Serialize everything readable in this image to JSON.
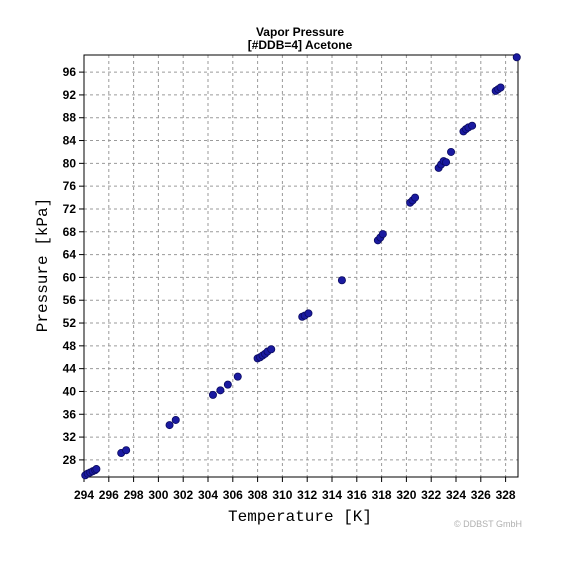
{
  "chart_data": {
    "type": "scatter",
    "title": "Vapor Pressure",
    "subtitle": "[#DDB=4] Acetone",
    "xlabel": "Temperature [K]",
    "ylabel": "Pressure [kPa]",
    "xlim": [
      294,
      329
    ],
    "ylim": [
      25,
      99
    ],
    "xticks": [
      294,
      296,
      298,
      300,
      302,
      304,
      306,
      308,
      310,
      312,
      314,
      316,
      318,
      320,
      322,
      324,
      326,
      328
    ],
    "yticks": [
      28,
      32,
      36,
      40,
      44,
      48,
      52,
      56,
      60,
      64,
      68,
      72,
      76,
      80,
      84,
      88,
      92,
      96
    ],
    "grid": true,
    "marker_color": "#1a1aa0",
    "series": [
      {
        "points": [
          [
            294.1,
            25.3
          ],
          [
            294.3,
            25.6
          ],
          [
            294.5,
            25.8
          ],
          [
            294.7,
            26.0
          ],
          [
            294.9,
            26.2
          ],
          [
            295.0,
            26.4
          ],
          [
            297.0,
            29.2
          ],
          [
            297.4,
            29.7
          ],
          [
            300.9,
            34.1
          ],
          [
            301.4,
            35.0
          ],
          [
            304.4,
            39.4
          ],
          [
            305.0,
            40.2
          ],
          [
            305.6,
            41.2
          ],
          [
            306.4,
            42.6
          ],
          [
            308.0,
            45.8
          ],
          [
            308.2,
            46.0
          ],
          [
            308.4,
            46.3
          ],
          [
            308.6,
            46.6
          ],
          [
            308.8,
            47.0
          ],
          [
            309.1,
            47.4
          ],
          [
            311.6,
            53.1
          ],
          [
            311.8,
            53.3
          ],
          [
            312.1,
            53.7
          ],
          [
            314.8,
            59.5
          ],
          [
            317.7,
            66.5
          ],
          [
            317.9,
            67.0
          ],
          [
            318.1,
            67.6
          ],
          [
            320.3,
            73.1
          ],
          [
            320.5,
            73.5
          ],
          [
            320.7,
            74.0
          ],
          [
            322.6,
            79.2
          ],
          [
            322.8,
            79.8
          ],
          [
            323.0,
            80.4
          ],
          [
            323.2,
            80.2
          ],
          [
            323.6,
            82.0
          ],
          [
            324.6,
            85.6
          ],
          [
            324.8,
            86.0
          ],
          [
            325.0,
            86.3
          ],
          [
            325.3,
            86.6
          ],
          [
            327.2,
            92.7
          ],
          [
            327.4,
            93.0
          ],
          [
            327.6,
            93.3
          ],
          [
            328.9,
            98.6
          ]
        ]
      }
    ]
  },
  "footer": {
    "copyright": "© DDBST GmbH"
  }
}
